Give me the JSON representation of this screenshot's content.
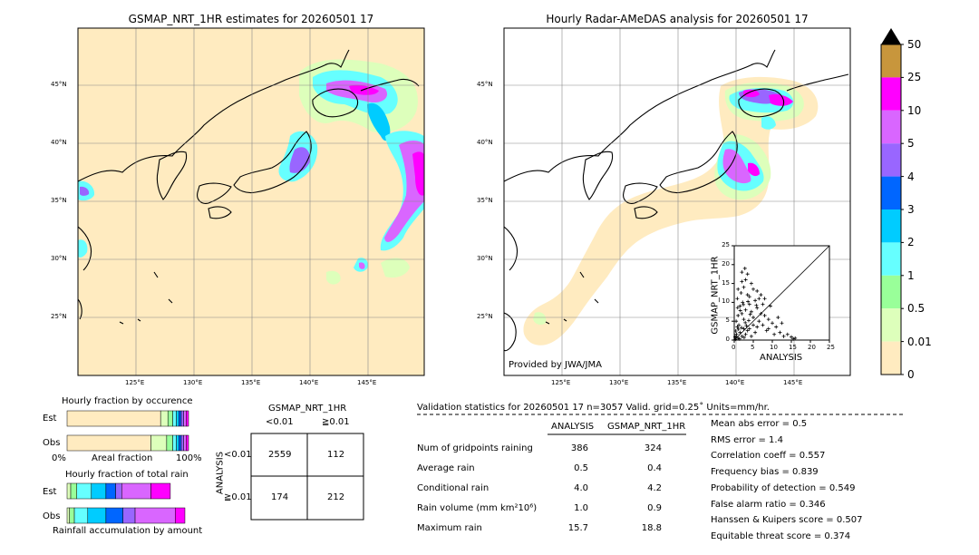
{
  "left_map": {
    "title": "GSMAP_NRT_1HR estimates for 20260501 17",
    "lon_ticks": [
      "125°E",
      "130°E",
      "135°E",
      "140°E",
      "145°E"
    ],
    "lat_ticks": [
      "45°N",
      "40°N",
      "35°N",
      "30°N",
      "25°N"
    ]
  },
  "right_map": {
    "title": "Hourly Radar-AMeDAS analysis for 20260501 17",
    "lon_ticks": [
      "125°E",
      "130°E",
      "135°E",
      "140°E",
      "145°E"
    ],
    "lat_ticks": [
      "45°N",
      "40°N",
      "35°N",
      "30°N",
      "25°N"
    ],
    "credit": "Provided by JWA/JMA"
  },
  "colorbar": {
    "labels": [
      "50",
      "25",
      "10",
      "5",
      "4",
      "3",
      "2",
      "1",
      "0.5",
      "0.01",
      "0"
    ],
    "colors": [
      "#c8963c",
      "#ff00ff",
      "#d966ff",
      "#9966ff",
      "#0066ff",
      "#00ccff",
      "#66ffff",
      "#99ff99",
      "#ddffbb",
      "#ffebc0"
    ],
    "top_color": "#000000"
  },
  "chart_data": [
    {
      "type": "scatter",
      "xlabel": "ANALYSIS",
      "ylabel": "GSMAP_NRT_1HR",
      "xlim": [
        0,
        25
      ],
      "ylim": [
        0,
        25
      ],
      "x_ticks": [
        "0",
        "5",
        "10",
        "15",
        "20",
        "25"
      ],
      "y_ticks": [
        "0",
        "5",
        "10",
        "15",
        "20",
        "25"
      ],
      "points": [
        [
          0.3,
          0.2
        ],
        [
          0.5,
          1.0
        ],
        [
          1.0,
          0.5
        ],
        [
          1.5,
          2.0
        ],
        [
          2.0,
          1.0
        ],
        [
          2.5,
          3.0
        ],
        [
          3.0,
          1.5
        ],
        [
          0.8,
          3.5
        ],
        [
          1.2,
          4.0
        ],
        [
          3.5,
          2.5
        ],
        [
          4.0,
          3.0
        ],
        [
          4.5,
          1.0
        ],
        [
          5.0,
          4.0
        ],
        [
          5.5,
          2.0
        ],
        [
          6.0,
          3.5
        ],
        [
          0.5,
          5.0
        ],
        [
          1.0,
          6.5
        ],
        [
          2.0,
          7.0
        ],
        [
          2.5,
          5.5
        ],
        [
          3.0,
          8.0
        ],
        [
          1.5,
          9.0
        ],
        [
          2.2,
          10.0
        ],
        [
          0.8,
          11.0
        ],
        [
          1.8,
          12.5
        ],
        [
          2.5,
          14.0
        ],
        [
          3.0,
          16.0
        ],
        [
          2.0,
          18.0
        ],
        [
          2.8,
          19.0
        ],
        [
          3.5,
          12.0
        ],
        [
          4.0,
          9.5
        ],
        [
          4.5,
          7.5
        ],
        [
          5.0,
          6.0
        ],
        [
          5.5,
          10.5
        ],
        [
          6.0,
          8.5
        ],
        [
          6.5,
          5.0
        ],
        [
          7.0,
          7.0
        ],
        [
          7.5,
          4.0
        ],
        [
          8.0,
          6.5
        ],
        [
          8.5,
          2.5
        ],
        [
          9.0,
          3.0
        ],
        [
          10.0,
          4.5
        ],
        [
          10.5,
          1.5
        ],
        [
          11.0,
          3.5
        ],
        [
          12.0,
          2.0
        ],
        [
          13.0,
          1.0
        ],
        [
          14.0,
          1.5
        ],
        [
          15.5,
          0.3
        ],
        [
          15.0,
          0.8
        ],
        [
          9.5,
          9.0
        ],
        [
          8.0,
          11.0
        ],
        [
          6.0,
          13.0
        ],
        [
          4.5,
          15.0
        ],
        [
          3.5,
          17.5
        ],
        [
          5.0,
          13.5
        ],
        [
          7.0,
          12.0
        ],
        [
          0.2,
          0.8
        ],
        [
          0.6,
          1.6
        ],
        [
          1.4,
          0.3
        ],
        [
          2.6,
          0.7
        ],
        [
          3.2,
          3.8
        ],
        [
          0.4,
          2.4
        ],
        [
          1.1,
          2.9
        ],
        [
          1.9,
          3.3
        ],
        [
          2.9,
          4.6
        ],
        [
          3.8,
          5.2
        ],
        [
          4.2,
          6.8
        ],
        [
          1.6,
          7.8
        ],
        [
          0.9,
          8.6
        ],
        [
          2.4,
          9.4
        ],
        [
          3.6,
          10.2
        ],
        [
          16.0,
          0.5
        ],
        [
          12.5,
          4.5
        ],
        [
          11.5,
          6.0
        ],
        [
          9.0,
          5.5
        ],
        [
          7.5,
          9.5
        ],
        [
          6.5,
          11.0
        ],
        [
          1.0,
          13.5
        ],
        [
          2.0,
          15.5
        ],
        [
          4.0,
          11.5
        ],
        [
          5.8,
          9.2
        ]
      ]
    },
    {
      "type": "bar",
      "title": "Hourly fraction by occurence",
      "categories": [
        "Est",
        "Obs"
      ],
      "xlabel": "Areal fraction",
      "x_ticks": [
        "0%",
        "100%"
      ],
      "series": [
        {
          "category": "Est",
          "segments": [
            {
              "color": "#ffebc0",
              "value": 0.77
            },
            {
              "color": "#ddffbb",
              "value": 0.06
            },
            {
              "color": "#99ff99",
              "value": 0.04
            },
            {
              "color": "#66ffff",
              "value": 0.03
            },
            {
              "color": "#00ccff",
              "value": 0.02
            },
            {
              "color": "#0066ff",
              "value": 0.02
            },
            {
              "color": "#9966ff",
              "value": 0.02
            },
            {
              "color": "#d966ff",
              "value": 0.02
            },
            {
              "color": "#ff00ff",
              "value": 0.02
            }
          ]
        },
        {
          "category": "Obs",
          "segments": [
            {
              "color": "#ffebc0",
              "value": 0.69
            },
            {
              "color": "#ddffbb",
              "value": 0.13
            },
            {
              "color": "#99ff99",
              "value": 0.05
            },
            {
              "color": "#66ffff",
              "value": 0.03
            },
            {
              "color": "#00ccff",
              "value": 0.02
            },
            {
              "color": "#0066ff",
              "value": 0.02
            },
            {
              "color": "#9966ff",
              "value": 0.02
            },
            {
              "color": "#d966ff",
              "value": 0.02
            },
            {
              "color": "#ff00ff",
              "value": 0.02
            }
          ]
        }
      ]
    },
    {
      "type": "bar",
      "title": "Hourly fraction of total rain",
      "categories": [
        "Est",
        "Obs"
      ],
      "xlabel": "Rainfall accumulation by amount",
      "series": [
        {
          "category": "Est",
          "segments": [
            {
              "color": "#ddffbb",
              "value": 0.03
            },
            {
              "color": "#99ff99",
              "value": 0.05
            },
            {
              "color": "#66ffff",
              "value": 0.12
            },
            {
              "color": "#00ccff",
              "value": 0.12
            },
            {
              "color": "#0066ff",
              "value": 0.08
            },
            {
              "color": "#9966ff",
              "value": 0.05
            },
            {
              "color": "#d966ff",
              "value": 0.24
            },
            {
              "color": "#ff00ff",
              "value": 0.16
            }
          ]
        },
        {
          "category": "Obs",
          "segments": [
            {
              "color": "#ddffbb",
              "value": 0.02
            },
            {
              "color": "#99ff99",
              "value": 0.04
            },
            {
              "color": "#66ffff",
              "value": 0.11
            },
            {
              "color": "#00ccff",
              "value": 0.15
            },
            {
              "color": "#0066ff",
              "value": 0.14
            },
            {
              "color": "#9966ff",
              "value": 0.1
            },
            {
              "color": "#d966ff",
              "value": 0.33
            },
            {
              "color": "#ff00ff",
              "value": 0.08
            }
          ]
        }
      ]
    }
  ],
  "contingency": {
    "title": "GSMAP_NRT_1HR",
    "col_headers": [
      "<0.01",
      "≧0.01"
    ],
    "row_axis": "ANALYSIS",
    "row_headers": [
      "<0.01",
      "≧0.01"
    ],
    "cells": [
      [
        "2559",
        "112"
      ],
      [
        "174",
        "212"
      ]
    ]
  },
  "validation": {
    "header": "Validation statistics for 20260501 17  n=3057 Valid. grid=0.25˚ Units=mm/hr.",
    "col1": "ANALYSIS",
    "col2": "GSMAP_NRT_1HR",
    "rows": [
      {
        "label": "Num of gridpoints raining",
        "a": "386",
        "b": "324"
      },
      {
        "label": "Average rain",
        "a": "0.5",
        "b": "0.4"
      },
      {
        "label": "Conditional rain",
        "a": "4.0",
        "b": "4.2"
      },
      {
        "label": "Rain volume (mm km²10⁶)",
        "a": "1.0",
        "b": "0.9"
      },
      {
        "label": "Maximum rain",
        "a": "15.7",
        "b": "18.8"
      }
    ],
    "scores": [
      "Mean abs error =    0.5",
      "RMS error =    1.4",
      "Correlation coeff =  0.557",
      "Frequency bias =  0.839",
      "Probability of detection =  0.549",
      "False alarm ratio =  0.346",
      "Hanssen & Kuipers score =  0.507",
      "Equitable threat score =  0.374"
    ]
  }
}
